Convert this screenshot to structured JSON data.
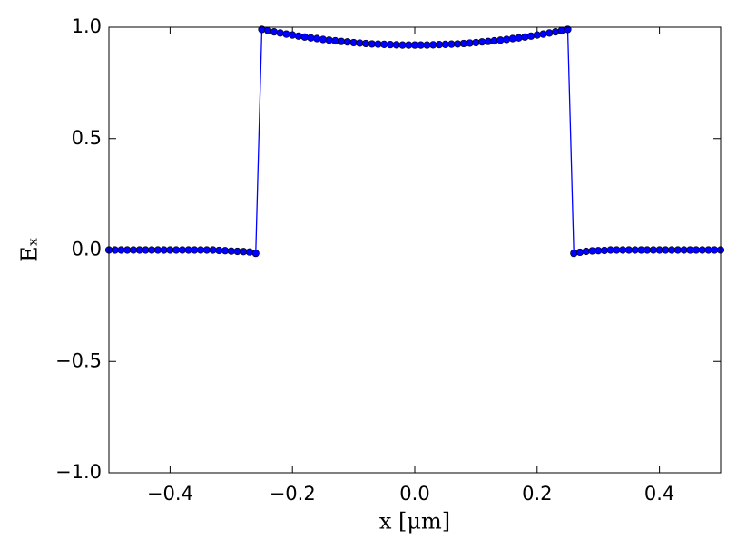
{
  "chart_data": {
    "type": "line",
    "xlabel": "x [μm]",
    "ylabel": "Eₓ",
    "color": "#0000ff",
    "markers": true,
    "x": [
      -0.5,
      -0.49,
      -0.48,
      -0.47,
      -0.46,
      -0.45,
      -0.44,
      -0.43,
      -0.42,
      -0.41,
      -0.4,
      -0.39,
      -0.38,
      -0.37,
      -0.36,
      -0.35,
      -0.34,
      -0.33,
      -0.32,
      -0.31,
      -0.3,
      -0.29,
      -0.28,
      -0.27,
      -0.26,
      -0.25,
      -0.24,
      -0.23,
      -0.22,
      -0.21,
      -0.2,
      -0.19,
      -0.18,
      -0.17,
      -0.16,
      -0.15,
      -0.14,
      -0.13,
      -0.12,
      -0.11,
      -0.1,
      -0.09,
      -0.08,
      -0.07,
      -0.06,
      -0.05,
      -0.04,
      -0.03,
      -0.02,
      -0.01,
      0,
      0.01,
      0.02,
      0.03,
      0.04,
      0.05,
      0.06,
      0.07,
      0.08,
      0.09,
      0.1,
      0.11,
      0.12,
      0.13,
      0.14,
      0.15,
      0.16,
      0.17,
      0.18,
      0.19,
      0.2,
      0.21,
      0.22,
      0.23,
      0.24,
      0.25,
      0.26,
      0.27,
      0.28,
      0.29,
      0.3,
      0.31,
      0.32,
      0.33,
      0.34,
      0.35,
      0.36,
      0.37,
      0.38,
      0.39,
      0.4,
      0.41,
      0.42,
      0.43,
      0.44,
      0.45,
      0.46,
      0.47,
      0.48,
      0.49,
      0.5
    ],
    "values": [
      0,
      0,
      0,
      0,
      0,
      0,
      0,
      0,
      0,
      0,
      0,
      0,
      0,
      0,
      0,
      0,
      0,
      0,
      -0.002,
      -0.003,
      -0.005,
      -0.006,
      -0.007,
      -0.009,
      -0.015,
      0.99,
      0.985,
      0.979,
      0.974,
      0.969,
      0.965,
      0.96,
      0.956,
      0.952,
      0.949,
      0.945,
      0.942,
      0.939,
      0.936,
      0.934,
      0.931,
      0.929,
      0.927,
      0.925,
      0.924,
      0.923,
      0.922,
      0.921,
      0.92,
      0.92,
      0.92,
      0.92,
      0.92,
      0.921,
      0.922,
      0.923,
      0.924,
      0.925,
      0.927,
      0.929,
      0.931,
      0.934,
      0.936,
      0.939,
      0.942,
      0.945,
      0.949,
      0.952,
      0.956,
      0.96,
      0.965,
      0.969,
      0.974,
      0.979,
      0.985,
      0.99,
      -0.015,
      -0.01,
      -0.006,
      -0.004,
      -0.003,
      -0.002,
      0,
      0,
      0,
      0,
      0,
      0,
      0,
      0,
      0,
      0,
      0,
      0,
      0,
      0,
      0,
      0,
      0,
      0,
      0
    ],
    "xlim": [
      -0.5,
      0.5
    ],
    "xticks": [
      {
        "value": -0.4,
        "label": "−0.4"
      },
      {
        "value": -0.2,
        "label": "−0.2"
      },
      {
        "value": 0,
        "label": "0.0"
      },
      {
        "value": 0.2,
        "label": "0.2"
      },
      {
        "value": 0.4,
        "label": "0.4"
      }
    ],
    "ylim": [
      -1,
      1
    ],
    "yticks": [
      {
        "value": -1,
        "label": "−1.0"
      },
      {
        "value": -0.5,
        "label": "−0.5"
      },
      {
        "value": 0,
        "label": "0.0"
      },
      {
        "value": 0.5,
        "label": "0.5"
      },
      {
        "value": 1,
        "label": "1.0"
      }
    ]
  }
}
